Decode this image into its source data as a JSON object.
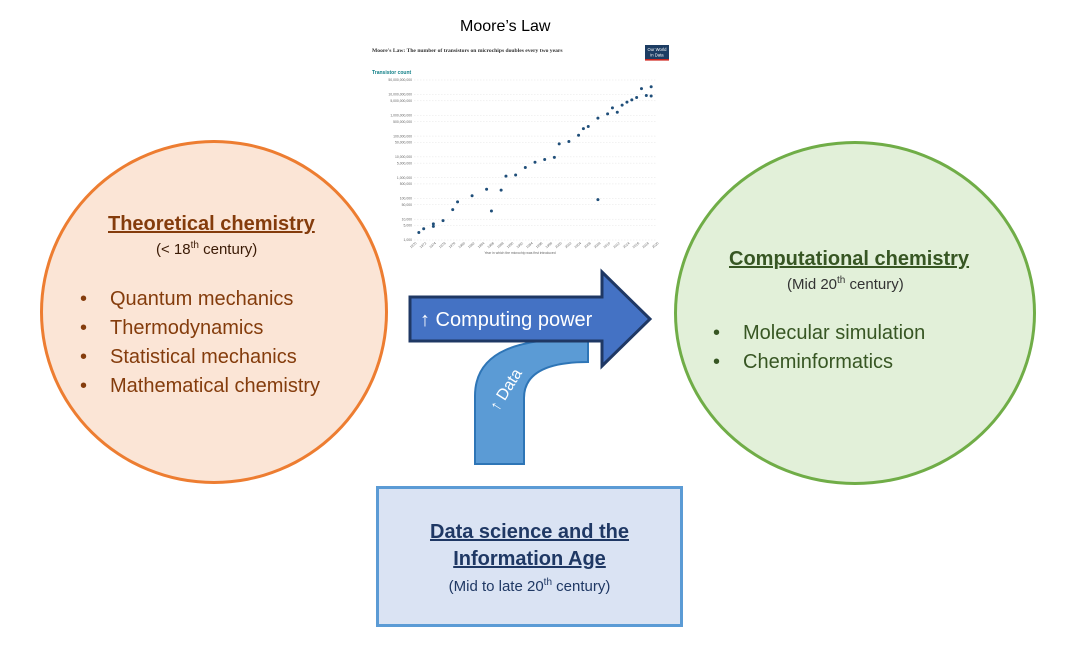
{
  "left_node": {
    "title": "Theoretical chemistry",
    "subtitle_pre": "(< 18",
    "subtitle_sup": "th",
    "subtitle_post": " century)",
    "items": [
      "Quantum mechanics",
      "Thermodynamics",
      "Statistical mechanics",
      "Mathematical chemistry"
    ],
    "fill_color": "#fbe5d6",
    "border_color": "#ed7d31"
  },
  "right_node": {
    "title": "Computational chemistry",
    "subtitle_pre": "(Mid 20",
    "subtitle_sup": "th",
    "subtitle_post": " century)",
    "items": [
      "Molecular simulation",
      "Cheminformatics"
    ],
    "fill_color": "#e2f0d9",
    "border_color": "#70ad47"
  },
  "bottom_node": {
    "title_line1": "Data science and the",
    "title_line2": "Information Age",
    "subtitle_pre": "(Mid to late 20",
    "subtitle_sup": "th",
    "subtitle_post": " century)",
    "fill_color": "#dae3f3",
    "border_color": "#5b9bd5"
  },
  "arrows": {
    "computing_label": "↑ Computing power",
    "data_label": "↑ Data"
  },
  "chart": {
    "heading": "Moore’s Law",
    "inner_title": "Moore's Law: The number of transistors on microchips doubles every two years",
    "badge_line1": "Our World",
    "badge_line2": "in Data",
    "y_axis_title": "Transistor count",
    "x_axis_title": "Year in which the microchip was first introduced"
  },
  "chart_data": {
    "type": "scatter",
    "title": "Moore's Law: The number of transistors on microchips doubles every two years",
    "xlabel": "Year in which the microchip was first introduced",
    "ylabel": "Transistor count",
    "y_scale": "log",
    "xlim": [
      1970,
      2020
    ],
    "ylim": [
      1000,
      50000000000
    ],
    "y_ticks": [
      "50,000,000,000",
      "10,000,000,000",
      "5,000,000,000",
      "1,000,000,000",
      "500,000,000",
      "100,000,000",
      "50,000,000",
      "10,000,000",
      "5,000,000",
      "1,000,000",
      "500,000",
      "100,000",
      "50,000",
      "10,000",
      "5,000",
      "1,000"
    ],
    "x_ticks": [
      "1970",
      "1972",
      "1974",
      "1976",
      "1978",
      "1980",
      "1982",
      "1984",
      "1986",
      "1988",
      "1990",
      "1992",
      "1994",
      "1996",
      "1998",
      "2000",
      "2002",
      "2004",
      "2006",
      "2008",
      "2010",
      "2012",
      "2014",
      "2016",
      "2018",
      "2020"
    ],
    "points": [
      [
        1971,
        2300
      ],
      [
        1972,
        3500
      ],
      [
        1974,
        4500
      ],
      [
        1974,
        6000
      ],
      [
        1976,
        8500
      ],
      [
        1978,
        29000
      ],
      [
        1979,
        68000
      ],
      [
        1982,
        134000
      ],
      [
        1985,
        275000
      ],
      [
        1986,
        25000
      ],
      [
        1988,
        250000
      ],
      [
        1989,
        1180000
      ],
      [
        1991,
        1350000
      ],
      [
        1993,
        3100000
      ],
      [
        1995,
        5500000
      ],
      [
        1997,
        7500000
      ],
      [
        1999,
        9500000
      ],
      [
        2000,
        42000000
      ],
      [
        2002,
        55000000
      ],
      [
        2004,
        110000000
      ],
      [
        2005,
        230000000
      ],
      [
        2006,
        290000000
      ],
      [
        2008,
        730000000
      ],
      [
        2008,
        88000
      ],
      [
        2010,
        1170000000
      ],
      [
        2011,
        2270000000
      ],
      [
        2012,
        1400000000
      ],
      [
        2013,
        3100000000
      ],
      [
        2014,
        4300000000
      ],
      [
        2015,
        5560000000
      ],
      [
        2016,
        7200000000
      ],
      [
        2017,
        19200000000
      ],
      [
        2018,
        9000000000
      ],
      [
        2019,
        23600000000
      ],
      [
        2019,
        8500000000
      ]
    ]
  }
}
